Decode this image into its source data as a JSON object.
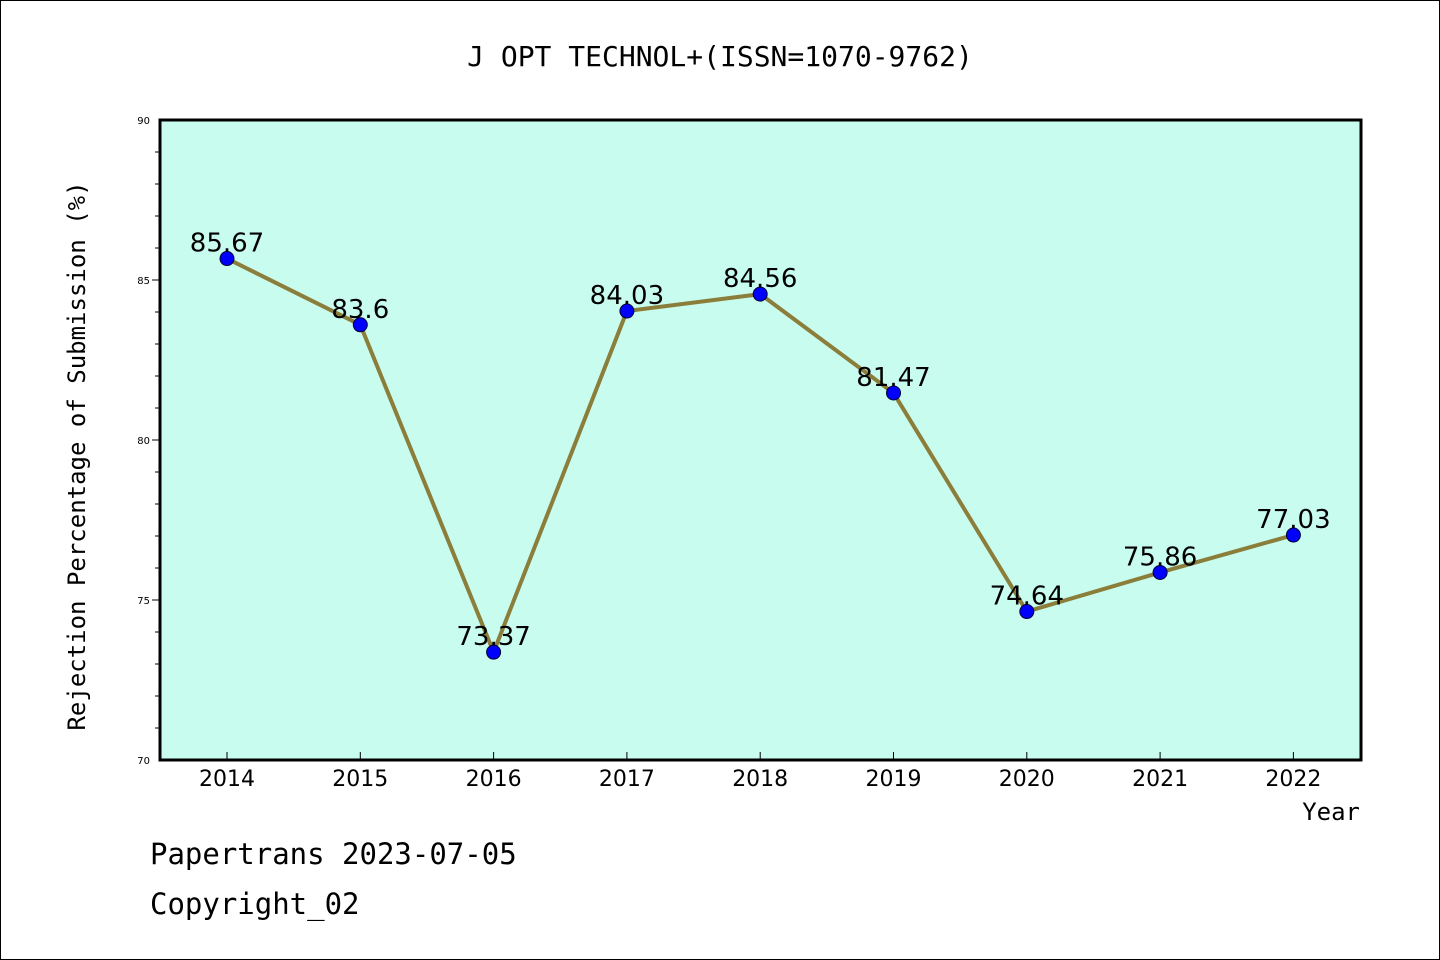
{
  "chart_data": {
    "type": "line",
    "title": "J OPT TECHNOL+(ISSN=1070-9762)",
    "xlabel": "Year",
    "ylabel": "Rejection Percentage of Submission (%)",
    "categories": [
      "2014",
      "2015",
      "2016",
      "2017",
      "2018",
      "2019",
      "2020",
      "2021",
      "2022"
    ],
    "series": [
      {
        "values": [
          85.67,
          83.6,
          73.37,
          84.03,
          84.56,
          81.47,
          74.64,
          75.86,
          77.03
        ],
        "labels": [
          "85.67",
          "83.6",
          "73.37",
          "84.03",
          "84.56",
          "81.47",
          "74.64",
          "75.86",
          "77.03"
        ]
      }
    ],
    "ylim": [
      70,
      90
    ],
    "yticks": [
      "70",
      "75",
      "80",
      "85",
      "90"
    ],
    "grid": false,
    "legend": "none",
    "colors": {
      "plot_background": "#c8fcee",
      "line": "#8b7d3a",
      "marker": "#0000ff"
    }
  },
  "footer": {
    "line1": "Papertrans 2023-07-05",
    "line2": "Copyright_02"
  }
}
